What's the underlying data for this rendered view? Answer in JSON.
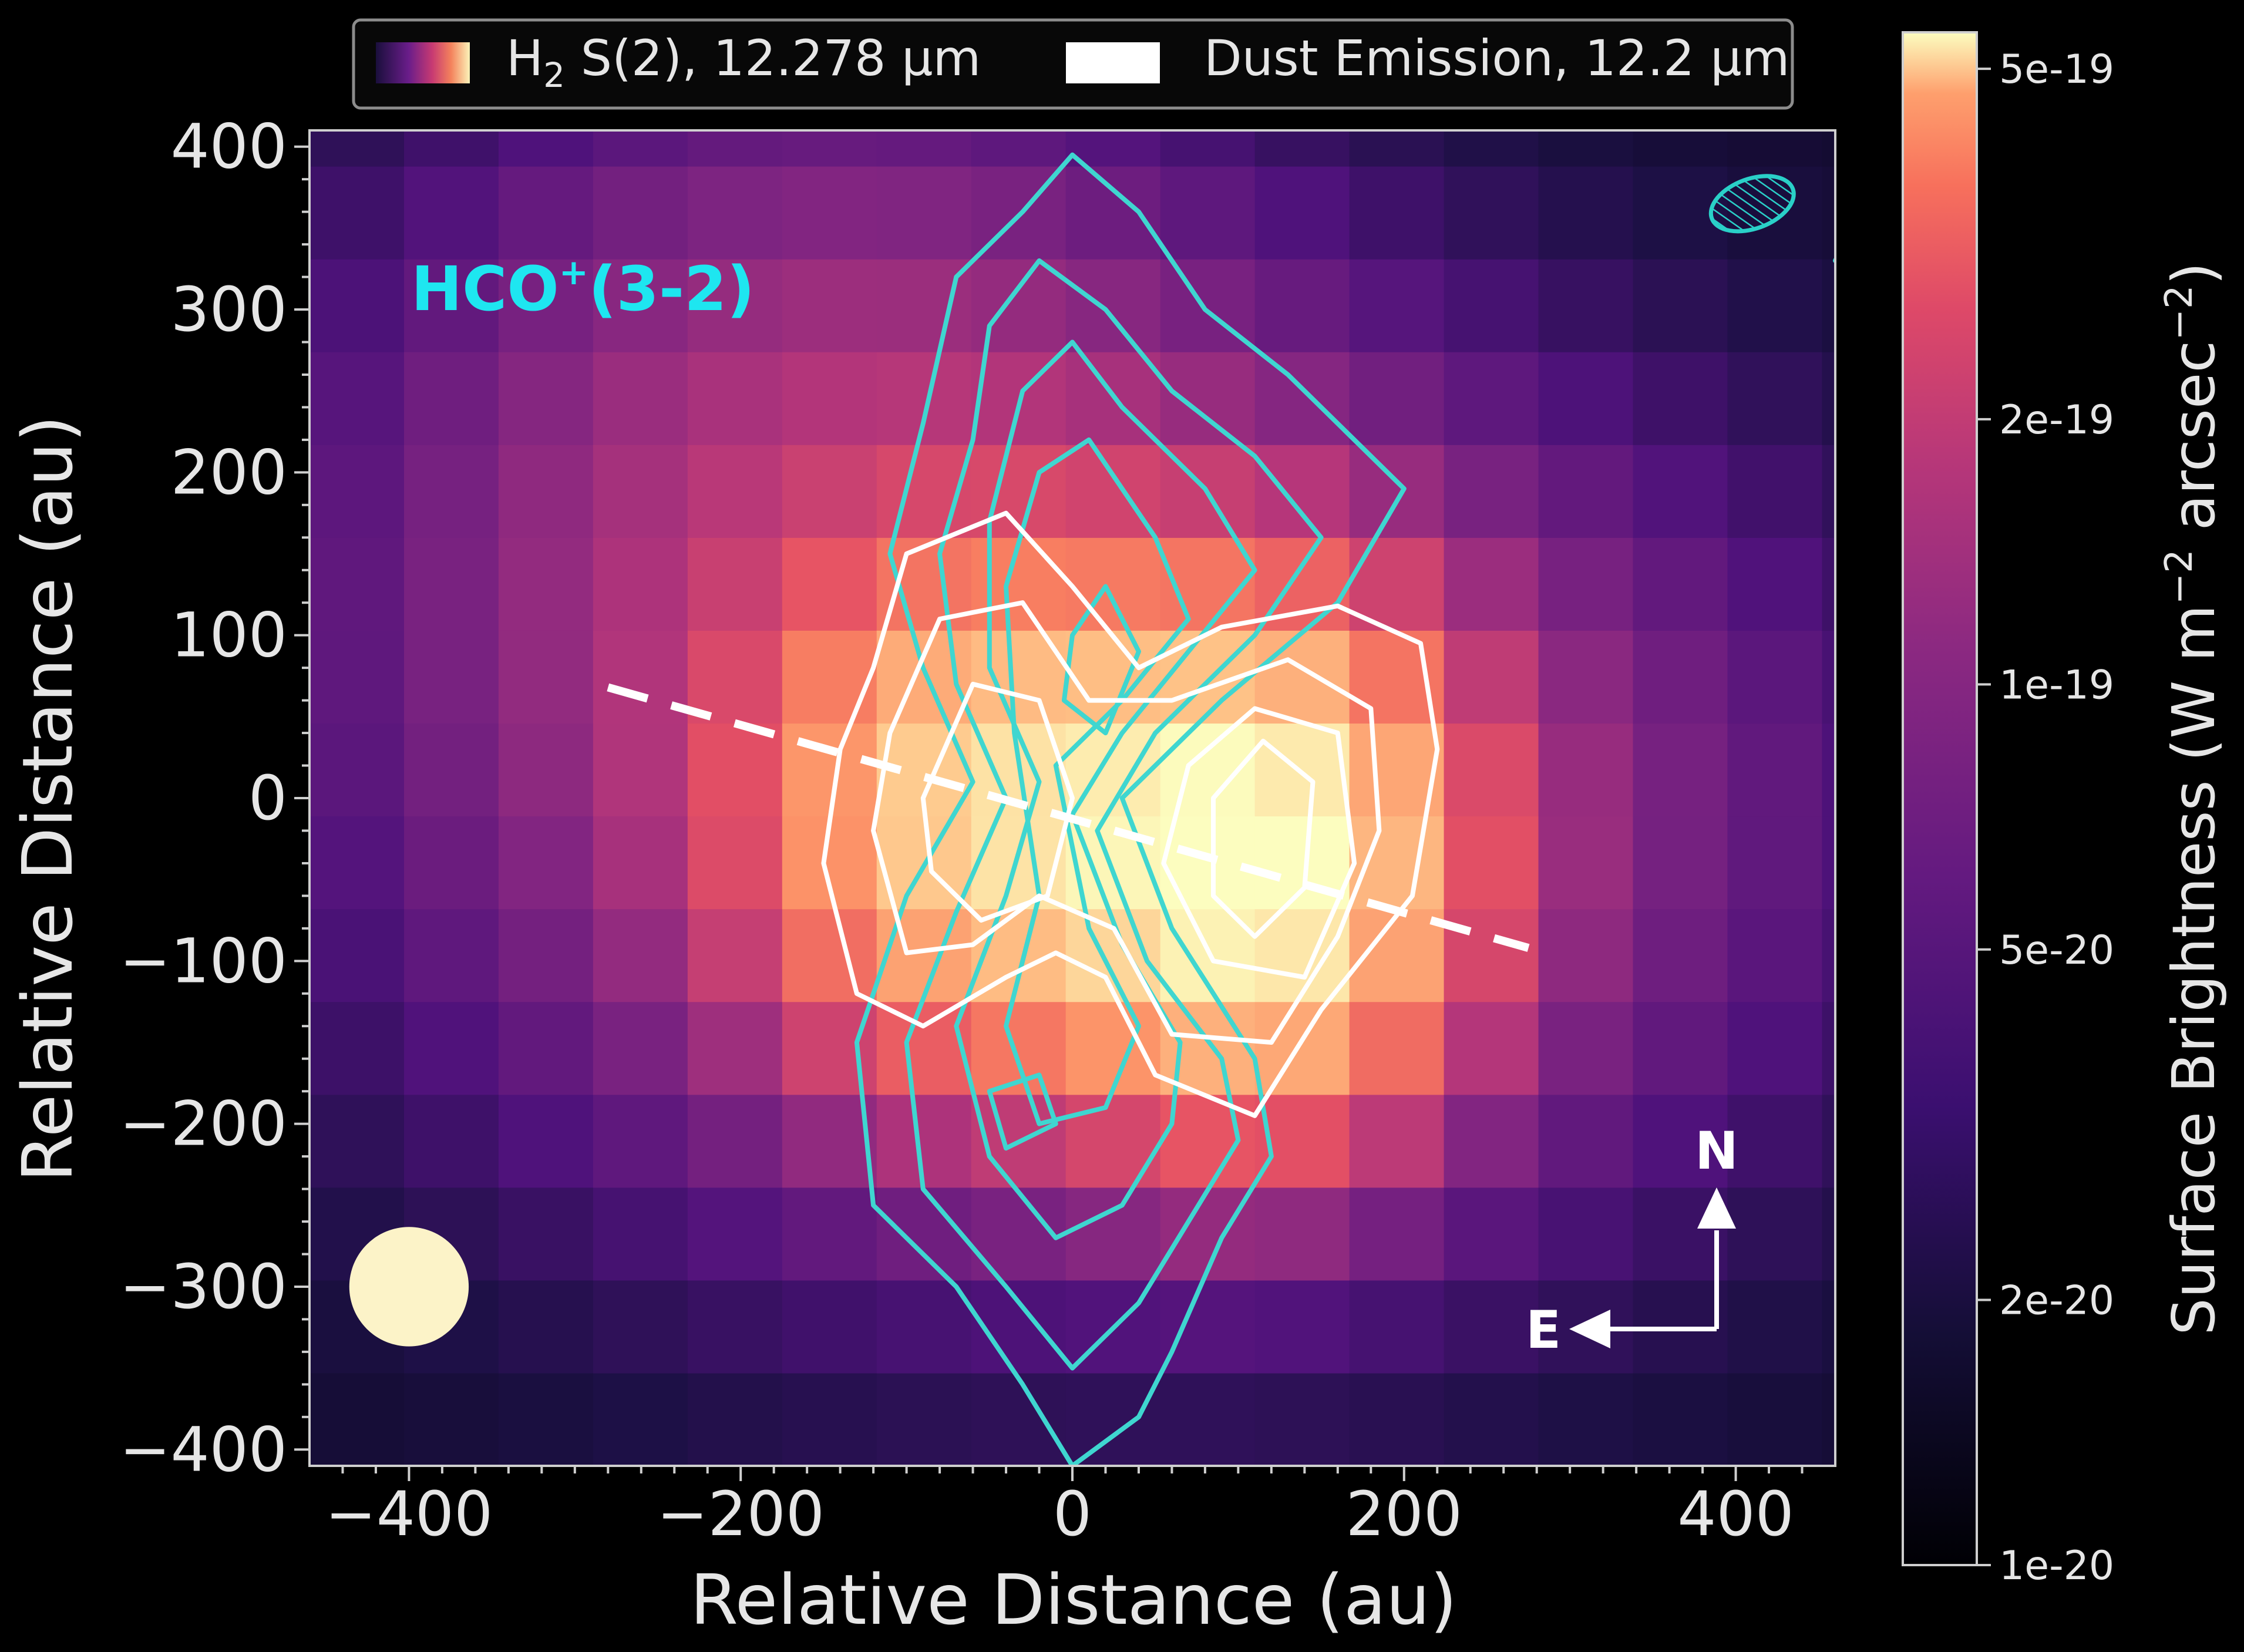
{
  "chart_data": {
    "type": "heatmap",
    "title": "",
    "xlabel": "Relative Distance (au)",
    "ylabel": "Relative Distance (au)",
    "xlim": [
      -460,
      460
    ],
    "ylim": [
      -410,
      410
    ],
    "xticks": [
      -400,
      -200,
      0,
      200,
      400
    ],
    "yticks": [
      -400,
      -300,
      -200,
      -100,
      0,
      100,
      200,
      300,
      400
    ],
    "xtick_labels": [
      "−400",
      "−200",
      "0",
      "200",
      "400"
    ],
    "ytick_labels": [
      "−400",
      "−300",
      "−200",
      "−100",
      "0",
      "100",
      "200",
      "300",
      "400"
    ],
    "pixel_size_au": 57,
    "legend": {
      "placement": "top",
      "entries": [
        {
          "label_main": "H",
          "label_sub": "2",
          "label_rest": " S(2), 12.278 μm",
          "swatch": "magma-gradient"
        },
        {
          "label_main": "Dust Emission, 12.2 μm",
          "swatch": "#ffffff"
        }
      ]
    },
    "annotation": {
      "main": "HCO",
      "sup": "+",
      "rest": "(3-2)",
      "color": "#1ee6f0"
    },
    "compass": {
      "north": "N",
      "east": "E"
    },
    "colorbar": {
      "label": "Surface Brightness (W m",
      "label_exp1": "−2",
      "label_mid": " arcsec",
      "label_exp2": "−2",
      "label_end": ")",
      "scale": "log",
      "range": [
        1e-20,
        5.5e-19
      ],
      "ticks": [
        5e-19,
        2e-19,
        1e-19,
        5e-20,
        2e-20,
        1e-20
      ],
      "tick_labels": [
        "5e-19",
        "2e-19",
        "1e-19",
        "5e-20",
        "2e-20",
        "1e-20"
      ]
    },
    "h2_map": {
      "model": "two gaussian lobes over extended halo (surface brightness, W m^-2 arcsec^-2)",
      "background": 1.4e-20,
      "components": [
        {
          "x0": 110,
          "y0": -40,
          "sx": 70,
          "sy": 90,
          "amp": 5e-19
        },
        {
          "x0": -50,
          "y0": -10,
          "sx": 80,
          "sy": 90,
          "amp": 3.2e-19
        },
        {
          "x0": 30,
          "y0": -10,
          "sx": 250,
          "sy": 170,
          "amp": 6.5e-20
        },
        {
          "x0": -150,
          "y0": 220,
          "sx": 180,
          "sy": 160,
          "amp": 4e-20
        }
      ]
    },
    "dust_contours_au": [
      [
        [
          -120,
          80
        ],
        [
          -100,
          150
        ],
        [
          -40,
          175
        ],
        [
          0,
          130
        ],
        [
          40,
          80
        ],
        [
          90,
          105
        ],
        [
          160,
          118
        ],
        [
          210,
          95
        ],
        [
          220,
          30
        ],
        [
          205,
          -60
        ],
        [
          150,
          -130
        ],
        [
          110,
          -195
        ],
        [
          50,
          -170
        ],
        [
          20,
          -110
        ],
        [
          -10,
          -95
        ],
        [
          -40,
          -110
        ],
        [
          -90,
          -140
        ],
        [
          -130,
          -120
        ],
        [
          -150,
          -40
        ],
        [
          -140,
          30
        ]
      ],
      [
        [
          -110,
          40
        ],
        [
          -80,
          110
        ],
        [
          -30,
          120
        ],
        [
          10,
          60
        ],
        [
          60,
          60
        ],
        [
          130,
          85
        ],
        [
          180,
          55
        ],
        [
          185,
          -20
        ],
        [
          160,
          -85
        ],
        [
          120,
          -150
        ],
        [
          60,
          -145
        ],
        [
          25,
          -80
        ],
        [
          -20,
          -60
        ],
        [
          -60,
          -90
        ],
        [
          -100,
          -95
        ],
        [
          -120,
          -20
        ]
      ],
      [
        [
          -90,
          0
        ],
        [
          -60,
          70
        ],
        [
          -20,
          60
        ],
        [
          0,
          0
        ],
        [
          -15,
          -60
        ],
        [
          -55,
          -75
        ],
        [
          -85,
          -45
        ]
      ],
      [
        [
          70,
          20
        ],
        [
          110,
          55
        ],
        [
          160,
          40
        ],
        [
          170,
          -40
        ],
        [
          140,
          -110
        ],
        [
          85,
          -100
        ],
        [
          55,
          -40
        ]
      ],
      [
        [
          85,
          0
        ],
        [
          115,
          35
        ],
        [
          145,
          10
        ],
        [
          140,
          -55
        ],
        [
          110,
          -85
        ],
        [
          85,
          -60
        ]
      ]
    ],
    "hco_contours_au": [
      [
        [
          -70,
          320
        ],
        [
          -30,
          360
        ],
        [
          0,
          395
        ],
        [
          40,
          360
        ],
        [
          80,
          300
        ],
        [
          130,
          260
        ],
        [
          200,
          190
        ],
        [
          160,
          120
        ],
        [
          90,
          60
        ],
        [
          30,
          0
        ],
        [
          60,
          -80
        ],
        [
          110,
          -160
        ],
        [
          120,
          -220
        ],
        [
          90,
          -270
        ],
        [
          60,
          -340
        ],
        [
          40,
          -380
        ],
        [
          0,
          -410
        ],
        [
          -30,
          -360
        ],
        [
          -70,
          -300
        ],
        [
          -120,
          -250
        ],
        [
          -130,
          -150
        ],
        [
          -100,
          -60
        ],
        [
          -60,
          10
        ],
        [
          -90,
          80
        ],
        [
          -110,
          150
        ],
        [
          -90,
          230
        ]
      ],
      [
        [
          -50,
          290
        ],
        [
          -20,
          330
        ],
        [
          20,
          300
        ],
        [
          60,
          250
        ],
        [
          110,
          210
        ],
        [
          150,
          160
        ],
        [
          110,
          100
        ],
        [
          50,
          40
        ],
        [
          15,
          -20
        ],
        [
          45,
          -100
        ],
        [
          90,
          -160
        ],
        [
          100,
          -210
        ],
        [
          70,
          -260
        ],
        [
          40,
          -310
        ],
        [
          0,
          -350
        ],
        [
          -40,
          -300
        ],
        [
          -90,
          -240
        ],
        [
          -100,
          -150
        ],
        [
          -70,
          -70
        ],
        [
          -40,
          0
        ],
        [
          -70,
          70
        ],
        [
          -80,
          150
        ],
        [
          -60,
          220
        ]
      ],
      [
        [
          -30,
          250
        ],
        [
          0,
          280
        ],
        [
          30,
          240
        ],
        [
          80,
          190
        ],
        [
          110,
          140
        ],
        [
          70,
          90
        ],
        [
          30,
          40
        ],
        [
          0,
          -10
        ],
        [
          30,
          -90
        ],
        [
          65,
          -150
        ],
        [
          60,
          -200
        ],
        [
          30,
          -250
        ],
        [
          -10,
          -270
        ],
        [
          -50,
          -220
        ],
        [
          -70,
          -140
        ],
        [
          -40,
          -60
        ],
        [
          -20,
          10
        ],
        [
          -50,
          80
        ],
        [
          -50,
          170
        ]
      ],
      [
        [
          -20,
          200
        ],
        [
          10,
          220
        ],
        [
          50,
          160
        ],
        [
          70,
          110
        ],
        [
          30,
          60
        ],
        [
          -10,
          20
        ],
        [
          10,
          -80
        ],
        [
          40,
          -140
        ],
        [
          20,
          -190
        ],
        [
          -20,
          -200
        ],
        [
          -40,
          -140
        ],
        [
          -20,
          -60
        ],
        [
          -35,
          40
        ],
        [
          -40,
          130
        ]
      ],
      [
        [
          0,
          100
        ],
        [
          20,
          130
        ],
        [
          40,
          90
        ],
        [
          20,
          40
        ],
        [
          -5,
          60
        ]
      ],
      [
        [
          -50,
          -180
        ],
        [
          -20,
          -170
        ],
        [
          -10,
          -200
        ],
        [
          -40,
          -215
        ]
      ],
      [
        [
          460,
          330
        ],
        [
          470,
          350
        ],
        [
          490,
          360
        ],
        [
          480,
          335
        ]
      ]
    ],
    "disk_axis_au": [
      [
        -280,
        68
      ],
      [
        275,
        -92
      ]
    ],
    "beam_h2": {
      "x": -400,
      "y": -300,
      "r": 36
    },
    "beam_hco": {
      "x": 410,
      "y": 365,
      "rx": 26,
      "ry": 15,
      "angle": -20
    }
  }
}
